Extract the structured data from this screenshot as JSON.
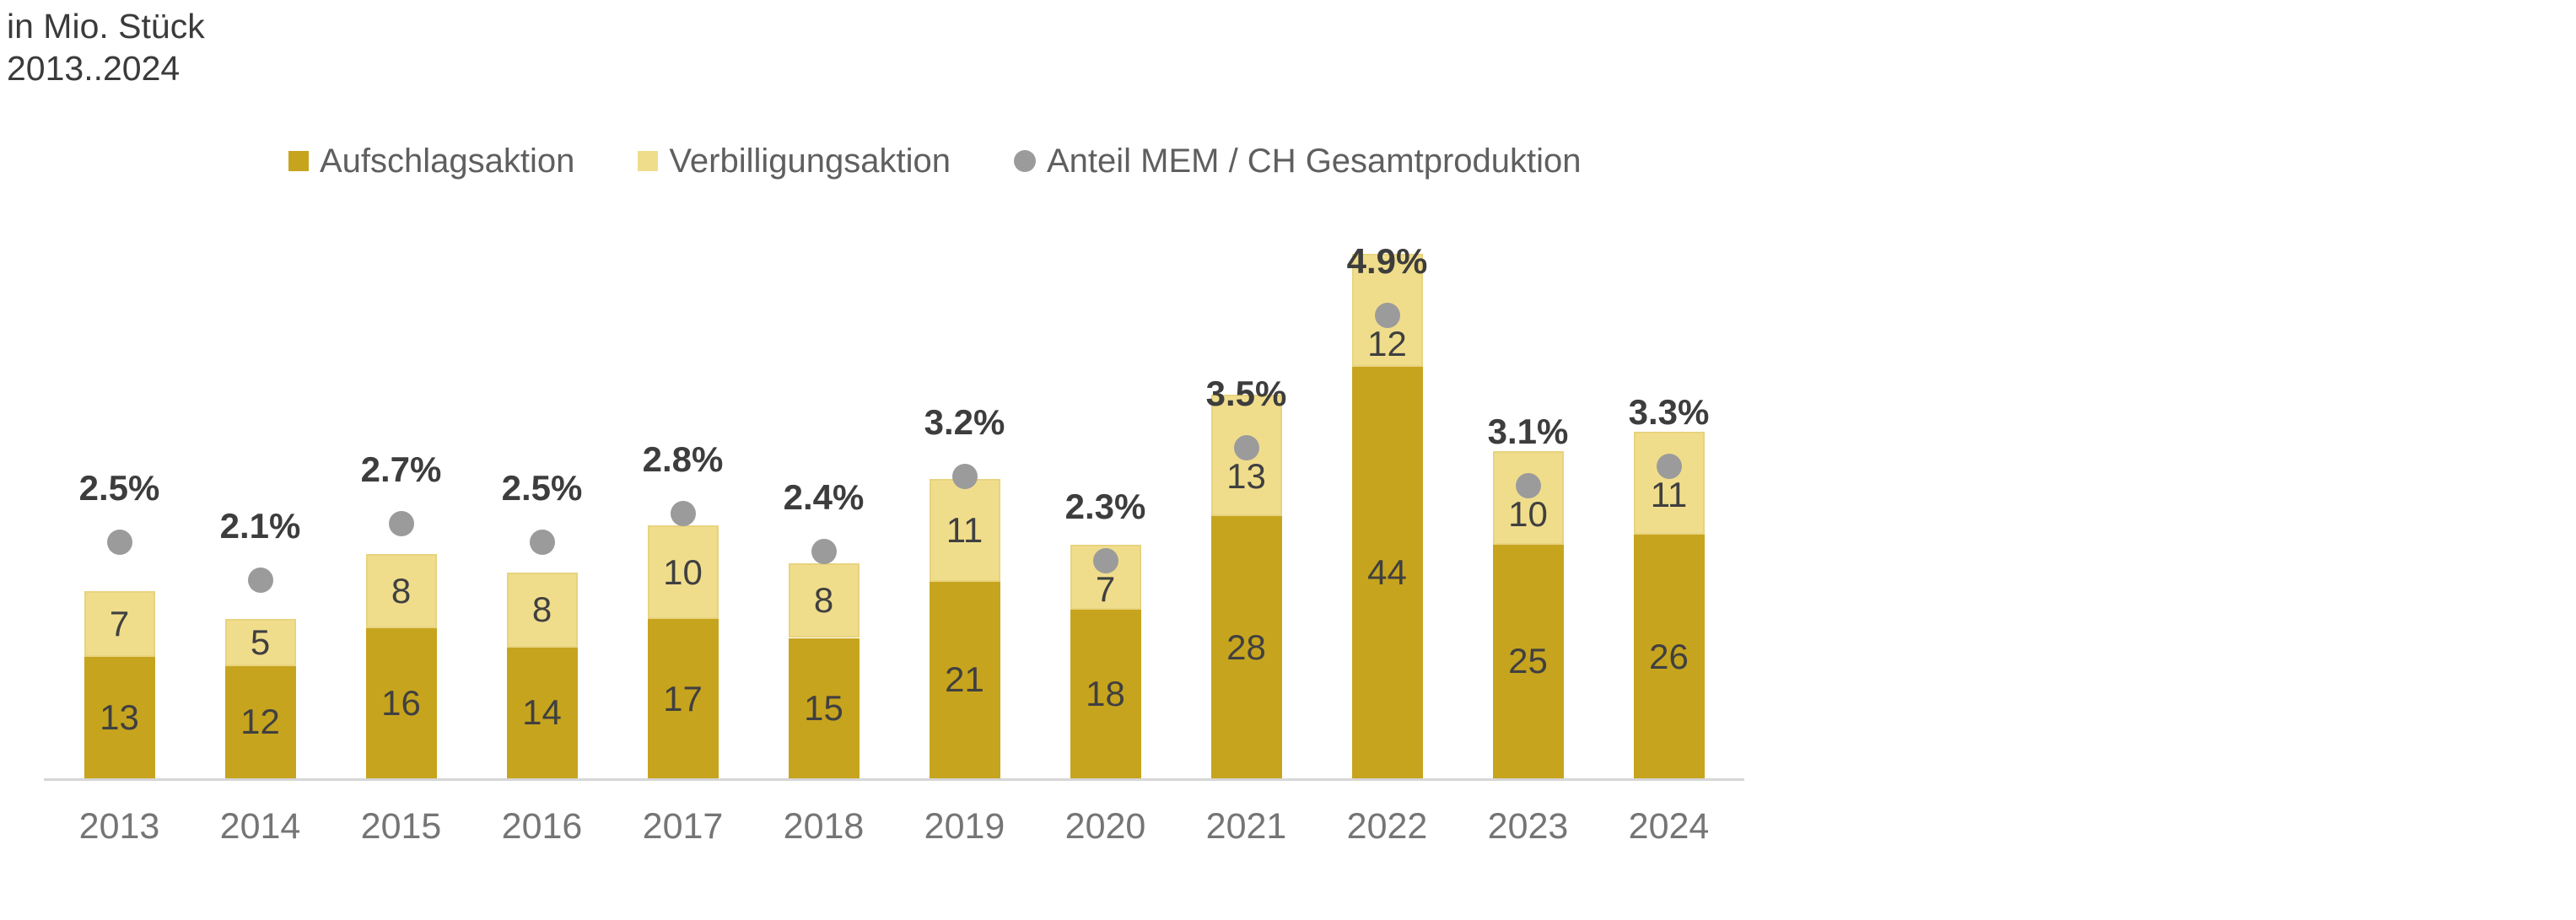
{
  "title": {
    "line1": "in Mio. Stück",
    "line2": "2013..2024"
  },
  "legend": {
    "items": [
      {
        "label": "Aufschlagsaktion",
        "swatch": "square",
        "color": "#c7a41e"
      },
      {
        "label": "Verbilligungsaktion",
        "swatch": "square",
        "color": "#f0dd8c"
      },
      {
        "label": "Anteil MEM / CH Gesamtproduktion",
        "swatch": "circle",
        "color": "#9b9b9b"
      }
    ]
  },
  "chart_data": {
    "type": "bar",
    "stacked": true,
    "title": "in Mio. Stück 2013..2024",
    "ylabel": "Mio. Stück",
    "xlabel": "",
    "grid": false,
    "legend_position": "top",
    "categories": [
      "2013",
      "2014",
      "2015",
      "2016",
      "2017",
      "2018",
      "2019",
      "2020",
      "2021",
      "2022",
      "2023",
      "2024"
    ],
    "series": [
      {
        "name": "Aufschlagsaktion",
        "color": "#c7a41e",
        "values": [
          13,
          12,
          16,
          14,
          17,
          15,
          21,
          18,
          28,
          44,
          25,
          26
        ]
      },
      {
        "name": "Verbilligungsaktion",
        "color": "#f0dd8c",
        "values": [
          7,
          5,
          8,
          8,
          10,
          8,
          11,
          7,
          13,
          12,
          10,
          11
        ]
      }
    ],
    "dot_series": {
      "name": "Anteil MEM / CH Gesamtproduktion",
      "color": "#9b9b9b",
      "unit": "%",
      "values": [
        2.5,
        2.1,
        2.7,
        2.5,
        2.8,
        2.4,
        3.2,
        2.3,
        3.5,
        4.9,
        3.1,
        3.3
      ],
      "labels": [
        "2.5%",
        "2.1%",
        "2.7%",
        "2.5%",
        "2.8%",
        "2.4%",
        "3.2%",
        "2.3%",
        "3.5%",
        "4.9%",
        "3.1%",
        "3.3%"
      ]
    },
    "value_axis_hidden": true,
    "colors": {
      "value_label": "#404040",
      "pct_label": "#3d3d3d",
      "year_label": "#757575",
      "axis_line": "#d6d6d6",
      "title_text": "#3b3b3b"
    }
  }
}
